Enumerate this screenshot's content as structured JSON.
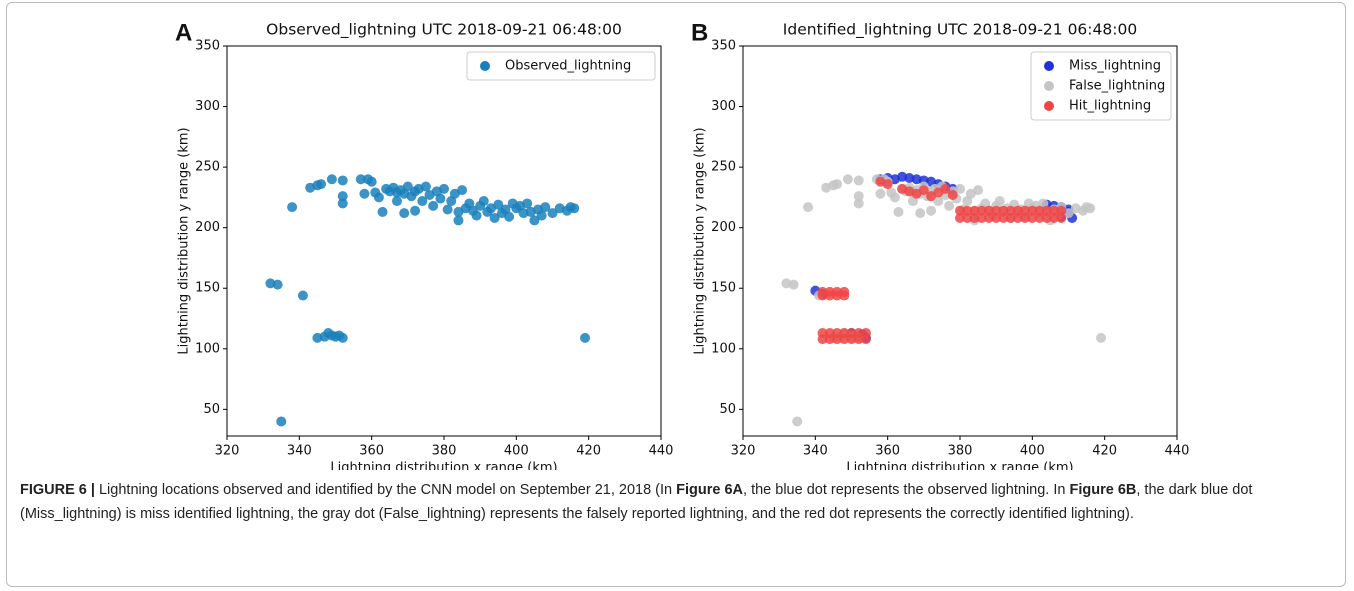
{
  "chart_data": [
    {
      "type": "scatter",
      "panel_label": "A",
      "title": "Observed_lightning UTC 2018-09-21 06:48:00",
      "x_label": "Lightning distribution x range (km)",
      "y_label": "Lightning distribution y range (km)",
      "xlim": [
        320,
        440
      ],
      "ylim": [
        28,
        350
      ],
      "xticks": [
        320,
        340,
        360,
        380,
        400,
        420,
        440
      ],
      "yticks": [
        50,
        100,
        150,
        200,
        250,
        300,
        350
      ],
      "legend": "upper right",
      "series": [
        {
          "name": "Observed_lightning",
          "color": "#1a80bb",
          "x": [
            332,
            334,
            341,
            335,
            338,
            343,
            345,
            346,
            349,
            352,
            352,
            352,
            345,
            347,
            348,
            349,
            350,
            351,
            352,
            419,
            357,
            359,
            360,
            358,
            361,
            362,
            363,
            364,
            365,
            366,
            367,
            367,
            368,
            369,
            369,
            370,
            371,
            372,
            372,
            373,
            374,
            375,
            376,
            377,
            378,
            379,
            380,
            381,
            382,
            383,
            384,
            384,
            385,
            386,
            387,
            388,
            389,
            390,
            391,
            392,
            393,
            394,
            395,
            396,
            397,
            398,
            399,
            400,
            401,
            402,
            403,
            404,
            405,
            406,
            407,
            408,
            410,
            412,
            414,
            415,
            416
          ],
          "y": [
            154,
            153,
            144,
            40,
            217,
            233,
            235,
            236,
            240,
            239,
            226,
            220,
            109,
            110,
            113,
            111,
            110,
            111,
            109,
            109,
            240,
            240,
            238,
            228,
            229,
            225,
            213,
            232,
            230,
            233,
            229,
            222,
            231,
            228,
            212,
            234,
            226,
            230,
            214,
            232,
            222,
            234,
            227,
            218,
            230,
            224,
            232,
            215,
            222,
            228,
            213,
            206,
            231,
            216,
            220,
            214,
            210,
            218,
            222,
            213,
            216,
            208,
            219,
            212,
            215,
            209,
            220,
            216,
            218,
            212,
            220,
            213,
            206,
            215,
            210,
            217,
            212,
            216,
            214,
            217,
            216
          ]
        }
      ]
    },
    {
      "type": "scatter",
      "panel_label": "B",
      "title": "Identified_lightning UTC 2018-09-21 06:48:00",
      "x_label": "Lightning distribution x range (km)",
      "y_label": "Lightning distribution y range (km)",
      "xlim": [
        320,
        440
      ],
      "ylim": [
        28,
        350
      ],
      "xticks": [
        320,
        340,
        360,
        380,
        400,
        420,
        440
      ],
      "yticks": [
        50,
        100,
        150,
        200,
        250,
        300,
        350
      ],
      "legend": "upper right",
      "series": [
        {
          "name": "Miss_lightning",
          "color": "#1f33d6",
          "x": [
            358,
            360,
            362,
            364,
            366,
            368,
            370,
            372,
            374,
            376,
            378,
            404,
            406,
            408,
            410,
            411,
            408,
            410,
            340,
            342,
            350,
            352,
            353,
            354
          ],
          "y": [
            240,
            241,
            240,
            242,
            241,
            240,
            239,
            238,
            236,
            234,
            232,
            219,
            218,
            217,
            213,
            208,
            209,
            215,
            148,
            145,
            113,
            110,
            112,
            109
          ]
        },
        {
          "name": "False_lightning",
          "color": "#c4c4c4",
          "x": [
            332,
            334,
            341,
            335,
            338,
            343,
            345,
            346,
            349,
            352,
            352,
            352,
            345,
            347,
            348,
            349,
            350,
            351,
            352,
            419,
            357,
            359,
            360,
            358,
            361,
            362,
            363,
            364,
            365,
            366,
            367,
            367,
            368,
            369,
            369,
            370,
            371,
            372,
            372,
            373,
            374,
            375,
            376,
            377,
            378,
            379,
            380,
            381,
            382,
            383,
            384,
            384,
            385,
            386,
            387,
            388,
            389,
            390,
            391,
            392,
            393,
            394,
            395,
            396,
            397,
            398,
            399,
            400,
            401,
            402,
            403,
            404,
            405,
            406,
            407,
            408,
            410,
            412,
            414,
            415,
            416
          ],
          "y": [
            154,
            153,
            144,
            40,
            217,
            233,
            235,
            236,
            240,
            239,
            226,
            220,
            109,
            110,
            113,
            111,
            110,
            111,
            109,
            109,
            240,
            240,
            238,
            228,
            229,
            225,
            213,
            232,
            230,
            233,
            229,
            222,
            231,
            228,
            212,
            234,
            226,
            230,
            214,
            232,
            222,
            234,
            227,
            218,
            230,
            224,
            232,
            215,
            222,
            228,
            213,
            206,
            231,
            216,
            220,
            214,
            210,
            218,
            222,
            213,
            216,
            208,
            219,
            212,
            215,
            209,
            220,
            216,
            218,
            212,
            220,
            213,
            206,
            215,
            210,
            217,
            212,
            216,
            214,
            217,
            216
          ]
        },
        {
          "name": "Hit_lightning",
          "color": "#f04545",
          "x": [
            358,
            360,
            364,
            366,
            368,
            370,
            372,
            374,
            376,
            378,
            380,
            382,
            384,
            386,
            388,
            390,
            392,
            394,
            396,
            398,
            400,
            402,
            404,
            406,
            408,
            380,
            382,
            384,
            386,
            388,
            390,
            392,
            394,
            396,
            398,
            400,
            402,
            404,
            406,
            408,
            342,
            344,
            346,
            348,
            342,
            344,
            346,
            348,
            342,
            344,
            346,
            348,
            350,
            352,
            354,
            342,
            344,
            346,
            348,
            350,
            352,
            354
          ],
          "y": [
            238,
            236,
            232,
            230,
            228,
            231,
            226,
            229,
            232,
            227,
            214,
            214,
            214,
            214,
            214,
            214,
            214,
            214,
            214,
            214,
            214,
            214,
            214,
            214,
            214,
            208,
            208,
            208,
            208,
            208,
            208,
            208,
            208,
            208,
            208,
            208,
            208,
            208,
            208,
            208,
            147,
            147,
            147,
            147,
            144,
            144,
            144,
            144,
            113,
            113,
            113,
            113,
            113,
            113,
            113,
            108,
            108,
            108,
            108,
            108,
            108,
            108
          ]
        }
      ]
    }
  ],
  "caption": {
    "label": "FIGURE 6 |",
    "parts": [
      " Lightning locations observed and identified by the CNN model on September 21, 2018 (In ",
      "Figure 6A",
      ", the blue dot represents the observed lightning. In ",
      "Figure 6B",
      ", the dark blue dot (Miss_lightning) is miss identified lightning, the gray dot (False_lightning) represents the falsely reported lightning, and the red dot represents the correctly identified lightning)."
    ]
  }
}
